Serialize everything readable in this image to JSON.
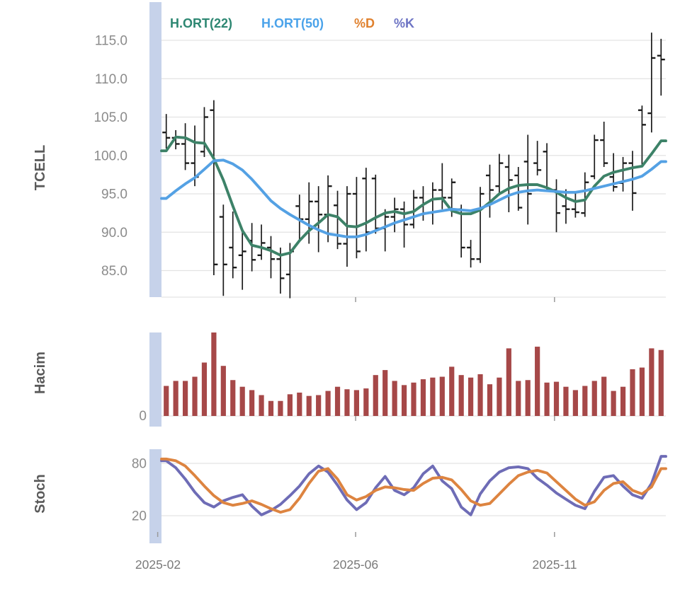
{
  "legend": {
    "items": [
      {
        "label": "H.ORT(22)",
        "color": "#2d8772"
      },
      {
        "label": "H.ORT(50)",
        "color": "#4ba3ea"
      },
      {
        "label": "%D",
        "color": "#e0812e"
      },
      {
        "label": "%K",
        "color": "#6d74c4"
      }
    ]
  },
  "x_axis": {
    "labels": [
      "2025-02",
      "2025-06",
      "2025-11"
    ],
    "tick_at_index": [
      -0.9,
      19.9,
      40.8
    ]
  },
  "chart_data": [
    {
      "type": "ohlc",
      "title": "TCELL",
      "ylim": [
        81,
        117.5
      ],
      "yticks": [
        85,
        90,
        95,
        100,
        105,
        110,
        115
      ],
      "grid": true,
      "bar_color": "#1c1c1c",
      "bars": {
        "open": [
          103.0,
          102.3,
          101.5,
          99.0,
          100.5,
          105.9,
          92.0,
          88.0,
          87.0,
          88.9,
          87.0,
          88.0,
          86.5,
          84.5,
          93.4,
          91.7,
          94.0,
          92.3,
          93.5,
          88.5,
          95.0,
          97.0,
          97.0,
          90.5,
          92.0,
          93.0,
          91.0,
          94.5,
          92.5,
          95.5,
          94.5,
          93.0,
          88.0,
          86.5,
          97.4,
          96.0,
          98.5,
          97.4,
          99.2,
          99.0,
          100.5,
          95.5,
          93.4,
          93.0,
          92.5,
          97.3,
          102.0,
          97.2,
          96.4,
          99.0,
          105.9,
          105.5,
          113.0
        ],
        "high": [
          105.4,
          103.3,
          104.2,
          103.9,
          106.3,
          107.2,
          93.6,
          92.7,
          90.4,
          91.2,
          91.0,
          89.5,
          88.0,
          88.6,
          94.9,
          96.5,
          96.0,
          97.4,
          95.4,
          96.0,
          97.2,
          98.4,
          97.5,
          93.0,
          94.5,
          94.0,
          95.5,
          96.0,
          96.5,
          99.0,
          97.0,
          93.6,
          89.0,
          95.9,
          98.8,
          100.2,
          100.1,
          98.5,
          102.7,
          101.9,
          101.6,
          96.9,
          95.6,
          95.1,
          97.8,
          102.7,
          104.4,
          100.3,
          99.8,
          100.6,
          106.5,
          116.0,
          115.2
        ],
        "low": [
          100.9,
          100.8,
          98.1,
          96.0,
          99.8,
          84.4,
          81.7,
          84.0,
          82.5,
          84.9,
          86.4,
          84.0,
          82.0,
          81.4,
          88.8,
          88.5,
          87.4,
          88.7,
          87.8,
          85.5,
          86.6,
          87.5,
          89.8,
          87.5,
          90.0,
          88.0,
          90.5,
          91.5,
          91.0,
          93.0,
          92.0,
          86.7,
          85.4,
          86.0,
          91.9,
          95.0,
          92.6,
          92.8,
          91.0,
          97.4,
          95.3,
          90.0,
          91.1,
          91.9,
          92.0,
          96.9,
          98.5,
          95.3,
          95.3,
          92.8,
          98.6,
          103.0,
          107.8
        ],
        "close": [
          102.3,
          101.5,
          99.0,
          97.2,
          105.0,
          85.8,
          85.8,
          85.4,
          87.5,
          86.4,
          88.6,
          86.5,
          84.0,
          87.5,
          91.7,
          94.0,
          92.3,
          96.0,
          88.5,
          95.0,
          87.5,
          90.0,
          90.5,
          92.0,
          93.0,
          91.0,
          94.5,
          92.5,
          95.5,
          94.5,
          96.5,
          88.0,
          86.5,
          95.0,
          95.5,
          99.0,
          96.8,
          93.2,
          95.0,
          98.1,
          95.5,
          92.5,
          93.0,
          92.6,
          96.5,
          102.0,
          99.0,
          95.9,
          99.0,
          95.1,
          104.0,
          112.7,
          112.5
        ]
      },
      "series": [
        {
          "name": "H.ORT(22)",
          "color": "#3d8268",
          "values": [
            100.6,
            102.4,
            102.3,
            101.7,
            101.6,
            99.6,
            96.8,
            93.4,
            90.2,
            88.3,
            88.0,
            87.6,
            87.0,
            87.3,
            88.9,
            90.2,
            91.2,
            92.3,
            92.0,
            90.8,
            90.7,
            91.2,
            91.9,
            92.5,
            92.7,
            92.4,
            92.7,
            93.6,
            94.3,
            94.4,
            92.8,
            92.4,
            92.4,
            92.9,
            93.9,
            95.0,
            95.7,
            96.1,
            96.2,
            96.2,
            95.8,
            95.2,
            94.5,
            94.0,
            94.2,
            96.0,
            97.3,
            97.8,
            98.1,
            98.4,
            98.6,
            100.2,
            101.9
          ]
        },
        {
          "name": "H.ORT(50)",
          "color": "#54a1e4",
          "values": [
            94.4,
            95.4,
            96.3,
            97.1,
            98.2,
            99.3,
            99.4,
            98.9,
            98.1,
            96.9,
            95.5,
            94.1,
            93.1,
            92.3,
            91.6,
            90.9,
            90.3,
            89.8,
            89.6,
            89.4,
            89.4,
            89.7,
            90.2,
            90.7,
            91.2,
            91.6,
            92.0,
            92.4,
            92.6,
            92.8,
            93.0,
            92.9,
            92.8,
            93.1,
            93.6,
            94.2,
            94.8,
            95.2,
            95.4,
            95.5,
            95.4,
            95.3,
            95.2,
            95.2,
            95.4,
            95.7,
            96.0,
            96.3,
            96.6,
            96.9,
            97.3,
            98.2,
            99.2
          ]
        }
      ]
    },
    {
      "type": "bar",
      "title": "Hacim",
      "yticks": [
        0
      ],
      "ylim": [
        0,
        100
      ],
      "units": "relative (only 0 labeled on axis)",
      "color": "#a64848",
      "values": [
        36,
        42,
        42,
        47,
        64,
        100,
        60,
        43,
        35,
        31,
        25,
        18,
        18,
        26,
        28,
        24,
        25,
        30,
        35,
        32,
        31,
        33,
        49,
        55,
        42,
        37,
        40,
        44,
        46,
        47,
        59,
        49,
        46,
        50,
        38,
        46,
        81,
        42,
        43,
        83,
        40,
        41,
        35,
        31,
        36,
        42,
        47,
        30,
        35,
        56,
        58,
        81,
        79
      ]
    },
    {
      "type": "line",
      "title": "Stoch",
      "yticks": [
        20,
        80
      ],
      "ylim": [
        10,
        95
      ],
      "grid": true,
      "series": [
        {
          "name": "%K",
          "color": "#6e6cb6",
          "values": [
            83,
            75,
            62,
            47,
            35,
            30,
            37,
            41,
            44,
            31,
            21,
            26,
            33,
            43,
            54,
            68,
            77,
            70,
            55,
            38,
            27,
            35,
            52,
            65,
            49,
            44,
            52,
            68,
            77,
            60,
            51,
            30,
            21,
            45,
            60,
            70,
            75,
            76,
            74,
            63,
            55,
            46,
            39,
            32,
            28,
            48,
            64,
            66,
            54,
            44,
            40,
            57,
            88
          ]
        },
        {
          "name": "%D",
          "color": "#dd8440",
          "values": [
            85,
            83,
            77,
            66,
            54,
            43,
            35,
            32,
            34,
            37,
            33,
            28,
            24,
            27,
            40,
            57,
            71,
            74,
            62,
            44,
            38,
            42,
            49,
            53,
            52,
            50,
            49,
            57,
            63,
            64,
            61,
            50,
            37,
            32,
            34,
            45,
            56,
            66,
            70,
            72,
            69,
            59,
            49,
            39,
            32,
            36,
            49,
            57,
            59,
            49,
            45,
            53,
            74
          ]
        }
      ]
    }
  ],
  "style": {
    "band_color": "#c6d2ea",
    "grid_color": "#e3e3e3",
    "axis_text_color": "#8b8b8b"
  }
}
